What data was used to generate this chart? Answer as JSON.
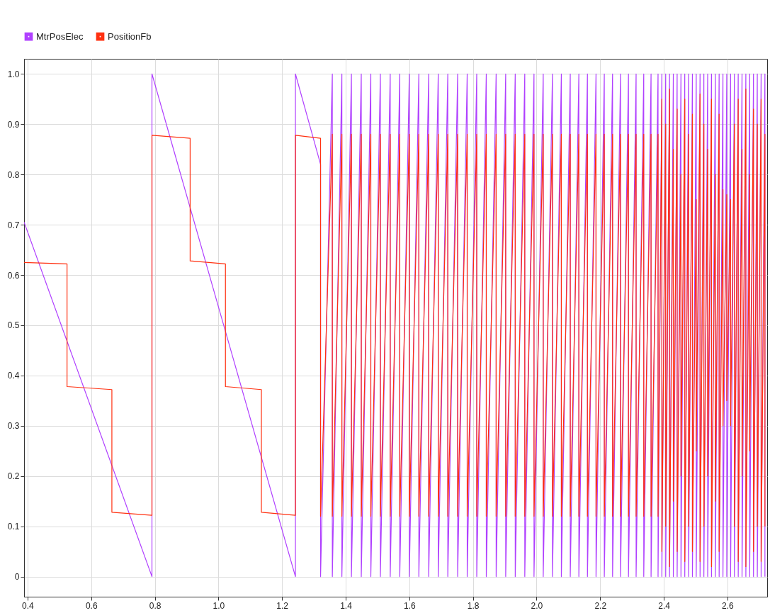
{
  "chart_data": {
    "type": "line",
    "xlim": [
      0.389,
      2.725
    ],
    "ylim": [
      -0.04,
      1.03
    ],
    "xticks": [
      0.4,
      0.6,
      0.8,
      {
        "value": 1,
        "label": "1.0"
      },
      1.2,
      1.4,
      1.6,
      1.8,
      {
        "value": 2,
        "label": "2.0"
      },
      2.2,
      2.4,
      2.6
    ],
    "yticks": [
      0,
      0.1,
      0.2,
      0.3,
      0.4,
      0.5,
      0.6,
      0.7,
      0.8,
      0.9,
      {
        "value": 1,
        "label": "1.0"
      }
    ],
    "grid": true,
    "legend": "top left",
    "series": [
      {
        "name": "MtrPosElec",
        "color": "#b040ff",
        "x": [
          0.389,
          0.791,
          0.791,
          1.242,
          1.242,
          1.321,
          1.321,
          1.358,
          1.358,
          1.388,
          1.388,
          1.418,
          1.418,
          1.449,
          1.449,
          1.479,
          1.479,
          1.509,
          1.509,
          1.54,
          1.54,
          1.57,
          1.57,
          1.6,
          1.6,
          1.63,
          1.63,
          1.661,
          1.661,
          1.691,
          1.691,
          1.721,
          1.721,
          1.752,
          1.752,
          1.782,
          1.782,
          1.812,
          1.812,
          1.842,
          1.842,
          1.873,
          1.873,
          1.903,
          1.903,
          1.933,
          1.933,
          1.963,
          1.963,
          1.992,
          1.992,
          2.021,
          2.021,
          2.05,
          2.05,
          2.078,
          2.078,
          2.106,
          2.106,
          2.133,
          2.133,
          2.16,
          2.16,
          2.187,
          2.187,
          2.213,
          2.213,
          2.239,
          2.239,
          2.264,
          2.264,
          2.289,
          2.289,
          2.313,
          2.313,
          2.337,
          2.337,
          2.36,
          2.36,
          2.382,
          2.382,
          2.394,
          2.394,
          2.406,
          2.406,
          2.418,
          2.418,
          2.43,
          2.43,
          2.442,
          2.442,
          2.454,
          2.454,
          2.466,
          2.466,
          2.478,
          2.478,
          2.49,
          2.49,
          2.502,
          2.502,
          2.514,
          2.514,
          2.526,
          2.526,
          2.538,
          2.538,
          2.55,
          2.55,
          2.562,
          2.562,
          2.574,
          2.574,
          2.586,
          2.586,
          2.598,
          2.598,
          2.61,
          2.61,
          2.622,
          2.622,
          2.634,
          2.634,
          2.646,
          2.646,
          2.658,
          2.658,
          2.67,
          2.67,
          2.682,
          2.682,
          2.694,
          2.694,
          2.706,
          2.706,
          2.718,
          2.718
        ],
        "values": [
          0.705,
          0,
          1,
          0,
          1,
          0.82,
          0,
          1,
          0,
          1,
          0,
          1,
          0,
          1,
          0,
          1,
          0,
          1,
          0,
          1,
          0,
          1,
          0,
          1,
          0,
          1,
          0,
          1,
          0,
          1,
          0,
          1,
          0,
          1,
          0,
          1,
          0,
          1,
          0,
          1,
          0,
          1,
          0,
          1,
          0,
          1,
          0,
          1,
          0,
          1,
          0,
          1,
          0,
          1,
          0,
          1,
          0,
          1,
          0,
          1,
          0,
          1,
          0,
          1,
          0,
          1,
          0,
          1,
          0,
          1,
          0,
          1,
          0,
          1,
          0,
          1,
          0,
          1,
          0,
          1,
          0,
          1,
          0,
          1,
          0,
          1,
          0,
          1,
          0,
          1,
          0,
          1,
          0,
          1,
          0,
          1,
          0,
          1,
          0,
          1,
          0,
          1,
          0,
          1,
          0,
          1,
          0,
          1,
          0,
          1,
          0,
          1,
          0,
          1,
          0,
          1,
          0,
          1,
          0,
          1,
          0,
          1,
          0,
          1,
          0,
          1,
          0,
          1,
          0,
          1,
          0,
          1,
          0,
          1,
          0,
          1,
          0
        ]
      },
      {
        "name": "PositionFb",
        "color": "#ff3010",
        "x": [
          0.389,
          0.524,
          0.524,
          0.665,
          0.665,
          0.791,
          0.791,
          0.911,
          0.911,
          1.022,
          1.022,
          1.135,
          1.135,
          1.242,
          1.242,
          1.321,
          1.321,
          1.358,
          1.358,
          1.388,
          1.388,
          1.418,
          1.418,
          1.449,
          1.449,
          1.479,
          1.479,
          1.509,
          1.509,
          1.54,
          1.54,
          1.57,
          1.57,
          1.6,
          1.6,
          1.63,
          1.63,
          1.661,
          1.661,
          1.691,
          1.691,
          1.721,
          1.721,
          1.752,
          1.752,
          1.782,
          1.782,
          1.812,
          1.812,
          1.842,
          1.842,
          1.873,
          1.873,
          1.903,
          1.903,
          1.933,
          1.933,
          1.963,
          1.963,
          1.992,
          1.992,
          2.021,
          2.021,
          2.05,
          2.05,
          2.078,
          2.078,
          2.106,
          2.106,
          2.133,
          2.133,
          2.16,
          2.16,
          2.187,
          2.187,
          2.213,
          2.213,
          2.239,
          2.239,
          2.264,
          2.264,
          2.289,
          2.289,
          2.313,
          2.313,
          2.337,
          2.337,
          2.36,
          2.36,
          2.382,
          2.382,
          2.394,
          2.394,
          2.406,
          2.406,
          2.418,
          2.418,
          2.43,
          2.43,
          2.442,
          2.442,
          2.454,
          2.454,
          2.466,
          2.466,
          2.478,
          2.478,
          2.49,
          2.49,
          2.502,
          2.502,
          2.514,
          2.514,
          2.526,
          2.526,
          2.538,
          2.538,
          2.55,
          2.55,
          2.562,
          2.562,
          2.574,
          2.574,
          2.586,
          2.586,
          2.598,
          2.598,
          2.61,
          2.61,
          2.622,
          2.622,
          2.634,
          2.634,
          2.646,
          2.646,
          2.658,
          2.658,
          2.67,
          2.67,
          2.682,
          2.682,
          2.694,
          2.694,
          2.706,
          2.706,
          2.718,
          2.718
        ],
        "values": [
          0.625,
          0.622,
          0.378,
          0.372,
          0.128,
          0.122,
          0.878,
          0.872,
          0.628,
          0.622,
          0.378,
          0.372,
          0.128,
          0.122,
          0.878,
          0.872,
          0.12,
          0.88,
          0.12,
          0.88,
          0.12,
          0.88,
          0.12,
          0.88,
          0.12,
          0.88,
          0.12,
          0.88,
          0.12,
          0.88,
          0.12,
          0.88,
          0.12,
          0.88,
          0.12,
          0.88,
          0.12,
          0.88,
          0.12,
          0.88,
          0.12,
          0.88,
          0.12,
          0.88,
          0.12,
          0.88,
          0.12,
          0.88,
          0.12,
          0.88,
          0.12,
          0.88,
          0.12,
          0.88,
          0.12,
          0.88,
          0.12,
          0.88,
          0.12,
          0.88,
          0.12,
          0.88,
          0.12,
          0.88,
          0.12,
          0.88,
          0.12,
          0.88,
          0.12,
          0.88,
          0.12,
          0.88,
          0.12,
          0.88,
          0.12,
          0.88,
          0.12,
          0.88,
          0.12,
          0.88,
          0.12,
          0.88,
          0.12,
          0.88,
          0.12,
          0.88,
          0.12,
          0.88,
          0.12,
          0.88,
          0.12,
          0.95,
          0.05,
          0.9,
          0.1,
          0.97,
          0.02,
          0.85,
          0.15,
          0.93,
          0.05,
          0.8,
          0.2,
          0.95,
          0.03,
          0.88,
          0.1,
          0.92,
          0.05,
          0.75,
          0.25,
          0.96,
          0.03,
          0.9,
          0.1,
          0.85,
          0.2,
          0.95,
          0.02,
          0.8,
          0.15,
          0.92,
          0.05,
          0.77,
          0.3,
          0.76,
          0.35,
          0.75,
          0.3,
          0.9,
          0.1,
          0.95,
          0.03,
          0.85,
          0.2,
          0.97,
          0.02,
          0.8,
          0.25,
          0.93,
          0.05,
          0.9,
          0.1,
          0.95,
          0.03,
          0.88,
          0.1
        ]
      }
    ]
  }
}
